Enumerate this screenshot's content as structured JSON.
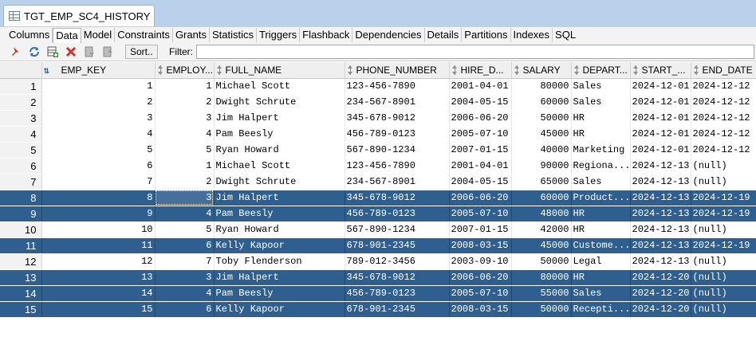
{
  "window": {
    "tab_title": "TGT_EMP_SC4_HISTORY"
  },
  "subtabs": [
    "Columns",
    "Data",
    "Model",
    "Constraints",
    "Grants",
    "Statistics",
    "Triggers",
    "Flashback",
    "Dependencies",
    "Details",
    "Partitions",
    "Indexes",
    "SQL"
  ],
  "active_subtab": "Data",
  "toolbar": {
    "sort_label": "Sort..",
    "filter_label": "Filter:",
    "filter_value": ""
  },
  "columns": [
    "EMP_KEY",
    "EMPLOY...",
    "FULL_NAME",
    "PHONE_NUMBER",
    "HIRE_D...",
    "SALARY",
    "DEPART...",
    "START_...",
    "END_DATE"
  ],
  "rows": [
    {
      "n": "1",
      "cells": [
        "1",
        "1",
        "Michael Scott",
        "123-456-7890",
        "2001-04-01",
        "80000",
        "Sales",
        "2024-12-01",
        "2024-12-12"
      ],
      "selected": false
    },
    {
      "n": "2",
      "cells": [
        "2",
        "2",
        "Dwight Schrute",
        "234-567-8901",
        "2004-05-15",
        "60000",
        "Sales",
        "2024-12-01",
        "2024-12-12"
      ],
      "selected": false
    },
    {
      "n": "3",
      "cells": [
        "3",
        "3",
        "Jim Halpert",
        "345-678-9012",
        "2006-06-20",
        "50000",
        "HR",
        "2024-12-01",
        "2024-12-12"
      ],
      "selected": false
    },
    {
      "n": "4",
      "cells": [
        "4",
        "4",
        "Pam Beesly",
        "456-789-0123",
        "2005-07-10",
        "45000",
        "HR",
        "2024-12-01",
        "2024-12-12"
      ],
      "selected": false
    },
    {
      "n": "5",
      "cells": [
        "5",
        "5",
        "Ryan Howard",
        "567-890-1234",
        "2007-01-15",
        "40000",
        "Marketing",
        "2024-12-01",
        "2024-12-12"
      ],
      "selected": false
    },
    {
      "n": "6",
      "cells": [
        "6",
        "1",
        "Michael Scott",
        "123-456-7890",
        "2001-04-01",
        "90000",
        "Regiona...",
        "2024-12-13",
        "(null)"
      ],
      "selected": false
    },
    {
      "n": "7",
      "cells": [
        "7",
        "2",
        "Dwight Schrute",
        "234-567-8901",
        "2004-05-15",
        "65000",
        "Sales",
        "2024-12-13",
        "(null)"
      ],
      "selected": false
    },
    {
      "n": "8",
      "cells": [
        "8",
        "3",
        "Jim Halpert",
        "345-678-9012",
        "2006-06-20",
        "60000",
        "Product...",
        "2024-12-13",
        "2024-12-19"
      ],
      "selected": true
    },
    {
      "n": "9",
      "cells": [
        "9",
        "4",
        "Pam Beesly",
        "456-789-0123",
        "2005-07-10",
        "48000",
        "HR",
        "2024-12-13",
        "2024-12-19"
      ],
      "selected": true
    },
    {
      "n": "10",
      "cells": [
        "10",
        "5",
        "Ryan Howard",
        "567-890-1234",
        "2007-01-15",
        "42000",
        "HR",
        "2024-12-13",
        "(null)"
      ],
      "selected": false
    },
    {
      "n": "11",
      "cells": [
        "11",
        "6",
        "Kelly Kapoor",
        "678-901-2345",
        "2008-03-15",
        "45000",
        "Custome...",
        "2024-12-13",
        "2024-12-19"
      ],
      "selected": true
    },
    {
      "n": "12",
      "cells": [
        "12",
        "7",
        "Toby Flenderson",
        "789-012-3456",
        "2003-09-10",
        "50000",
        "Legal",
        "2024-12-13",
        "(null)"
      ],
      "selected": false
    },
    {
      "n": "13",
      "cells": [
        "13",
        "3",
        "Jim Halpert",
        "345-678-9012",
        "2006-06-20",
        "80000",
        "HR",
        "2024-12-20",
        "(null)"
      ],
      "selected": true
    },
    {
      "n": "14",
      "cells": [
        "14",
        "4",
        "Pam Beesly",
        "456-789-0123",
        "2005-07-10",
        "55000",
        "Sales",
        "2024-12-20",
        "(null)"
      ],
      "selected": true
    },
    {
      "n": "15",
      "cells": [
        "15",
        "6",
        "Kelly Kapoor",
        "678-901-2345",
        "2008-03-15",
        "50000",
        "Recepti...",
        "2024-12-20",
        "(null)"
      ],
      "selected": true
    }
  ]
}
